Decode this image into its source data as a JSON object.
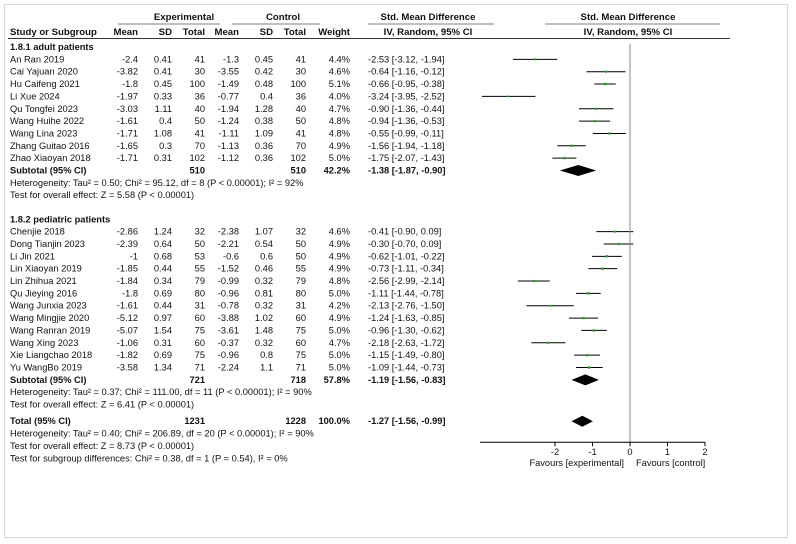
{
  "chart_data": {
    "type": "forest",
    "headers": {
      "group_experimental": "Experimental",
      "group_control": "Control",
      "group_smd_left": "Std. Mean Difference",
      "group_smd_right": "Std. Mean Difference",
      "study": "Study or Subgroup",
      "mean_e": "Mean",
      "sd_e": "SD",
      "total_e": "Total",
      "mean_c": "Mean",
      "sd_c": "SD",
      "total_c": "Total",
      "weight": "Weight",
      "smd_left": "IV, Random, 95% CI",
      "smd_right": "IV, Random, 95% CI"
    },
    "subgroups": [
      {
        "title": "1.8.1 adult patients",
        "studies": [
          {
            "name": "An Ran 2019",
            "mean_e": "-2.4",
            "sd_e": "0.41",
            "n_e": "41",
            "mean_c": "-1.3",
            "sd_c": "0.45",
            "n_c": "41",
            "weight": "4.4%",
            "ci_text": "-2.53 [-3.12, -1.94]",
            "est": -2.53,
            "lo": -3.12,
            "hi": -1.94
          },
          {
            "name": "Cai Yajuan 2020",
            "mean_e": "-3.82",
            "sd_e": "0.41",
            "n_e": "30",
            "mean_c": "-3.55",
            "sd_c": "0.42",
            "n_c": "30",
            "weight": "4.6%",
            "ci_text": "-0.64 [-1.16, -0.12]",
            "est": -0.64,
            "lo": -1.16,
            "hi": -0.12
          },
          {
            "name": "Hu Caifeng 2021",
            "mean_e": "-1.8",
            "sd_e": "0.45",
            "n_e": "100",
            "mean_c": "-1.49",
            "sd_c": "0.48",
            "n_c": "100",
            "weight": "5.1%",
            "ci_text": "-0.66 [-0.95, -0.38]",
            "est": -0.66,
            "lo": -0.95,
            "hi": -0.38
          },
          {
            "name": "Li Xue 2024",
            "mean_e": "-1.97",
            "sd_e": "0.33",
            "n_e": "36",
            "mean_c": "-0.77",
            "sd_c": "0.4",
            "n_c": "36",
            "weight": "4.0%",
            "ci_text": "-3.24 [-3.95, -2.52]",
            "est": -3.24,
            "lo": -3.95,
            "hi": -2.52
          },
          {
            "name": "Qu Tongfei 2023",
            "mean_e": "-3.03",
            "sd_e": "1.11",
            "n_e": "40",
            "mean_c": "-1.94",
            "sd_c": "1.28",
            "n_c": "40",
            "weight": "4.7%",
            "ci_text": "-0.90 [-1.36, -0.44]",
            "est": -0.9,
            "lo": -1.36,
            "hi": -0.44
          },
          {
            "name": "Wang Huihe 2022",
            "mean_e": "-1.61",
            "sd_e": "0.4",
            "n_e": "50",
            "mean_c": "-1.24",
            "sd_c": "0.38",
            "n_c": "50",
            "weight": "4.8%",
            "ci_text": "-0.94 [-1.36, -0.53]",
            "est": -0.94,
            "lo": -1.36,
            "hi": -0.53
          },
          {
            "name": "Wang Lina 2023",
            "mean_e": "-1.71",
            "sd_e": "1.08",
            "n_e": "41",
            "mean_c": "-1.11",
            "sd_c": "1.09",
            "n_c": "41",
            "weight": "4.8%",
            "ci_text": "-0.55 [-0.99, -0.11]",
            "est": -0.55,
            "lo": -0.99,
            "hi": -0.11
          },
          {
            "name": "Zhang Guitao 2016",
            "mean_e": "-1.65",
            "sd_e": "0.3",
            "n_e": "70",
            "mean_c": "-1.13",
            "sd_c": "0.36",
            "n_c": "70",
            "weight": "4.9%",
            "ci_text": "-1.56 [-1.94, -1.18]",
            "est": -1.56,
            "lo": -1.94,
            "hi": -1.18
          },
          {
            "name": "Zhao Xiaoyan 2018",
            "mean_e": "-1.71",
            "sd_e": "0.31",
            "n_e": "102",
            "mean_c": "-1.12",
            "sd_c": "0.36",
            "n_c": "102",
            "weight": "5.0%",
            "ci_text": "-1.75 [-2.07, -1.43]",
            "est": -1.75,
            "lo": -2.07,
            "hi": -1.43
          }
        ],
        "subtotal": {
          "label": "Subtotal (95% CI)",
          "n_e": "510",
          "n_c": "510",
          "weight": "42.2%",
          "ci_text": "-1.38 [-1.87, -0.90]",
          "est": -1.38,
          "lo": -1.87,
          "hi": -0.9
        },
        "heterogeneity": "Heterogeneity: Tau² = 0.50; Chi² = 95.12, df = 8 (P < 0.00001); I² = 92%",
        "overall_effect": "Test for overall effect: Z = 5.58 (P < 0.00001)"
      },
      {
        "title": "1.8.2 pediatric patients",
        "studies": [
          {
            "name": "Chenjie 2018",
            "mean_e": "-2.86",
            "sd_e": "1.24",
            "n_e": "32",
            "mean_c": "-2.38",
            "sd_c": "1.07",
            "n_c": "32",
            "weight": "4.6%",
            "ci_text": "-0.41 [-0.90, 0.09]",
            "est": -0.41,
            "lo": -0.9,
            "hi": 0.09
          },
          {
            "name": "Dong Tianjin 2023",
            "mean_e": "-2.39",
            "sd_e": "0.64",
            "n_e": "50",
            "mean_c": "-2.21",
            "sd_c": "0.54",
            "n_c": "50",
            "weight": "4.9%",
            "ci_text": "-0.30 [-0.70, 0.09]",
            "est": -0.3,
            "lo": -0.7,
            "hi": 0.09
          },
          {
            "name": "Li Jin 2021",
            "mean_e": "-1",
            "sd_e": "0.68",
            "n_e": "53",
            "mean_c": "-0.6",
            "sd_c": "0.6",
            "n_c": "50",
            "weight": "4.9%",
            "ci_text": "-0.62 [-1.01, -0.22]",
            "est": -0.62,
            "lo": -1.01,
            "hi": -0.22
          },
          {
            "name": "Lin Xiaoyan 2019",
            "mean_e": "-1.85",
            "sd_e": "0.44",
            "n_e": "55",
            "mean_c": "-1.52",
            "sd_c": "0.46",
            "n_c": "55",
            "weight": "4.9%",
            "ci_text": "-0.73 [-1.11, -0.34]",
            "est": -0.73,
            "lo": -1.11,
            "hi": -0.34
          },
          {
            "name": "Lin Zhihua 2021",
            "mean_e": "-1.84",
            "sd_e": "0.34",
            "n_e": "79",
            "mean_c": "-0.99",
            "sd_c": "0.32",
            "n_c": "79",
            "weight": "4.8%",
            "ci_text": "-2.56 [-2.99, -2.14]",
            "est": -2.56,
            "lo": -2.99,
            "hi": -2.14
          },
          {
            "name": "Qu Jieying 2016",
            "mean_e": "-1.8",
            "sd_e": "0.69",
            "n_e": "80",
            "mean_c": "-0.96",
            "sd_c": "0.81",
            "n_c": "80",
            "weight": "5.0%",
            "ci_text": "-1.11 [-1.44, -0.78]",
            "est": -1.11,
            "lo": -1.44,
            "hi": -0.78
          },
          {
            "name": "Wang Junxia 2023",
            "mean_e": "-1.61",
            "sd_e": "0.44",
            "n_e": "31",
            "mean_c": "-0.78",
            "sd_c": "0.32",
            "n_c": "31",
            "weight": "4.2%",
            "ci_text": "-2.13 [-2.76, -1.50]",
            "est": -2.13,
            "lo": -2.76,
            "hi": -1.5
          },
          {
            "name": "Wang Mingjie 2020",
            "mean_e": "-5.12",
            "sd_e": "0.97",
            "n_e": "60",
            "mean_c": "-3.88",
            "sd_c": "1.02",
            "n_c": "60",
            "weight": "4.9%",
            "ci_text": "-1.24 [-1.63, -0.85]",
            "est": -1.24,
            "lo": -1.63,
            "hi": -0.85
          },
          {
            "name": "Wang Ranran 2019",
            "mean_e": "-5.07",
            "sd_e": "1.54",
            "n_e": "75",
            "mean_c": "-3.61",
            "sd_c": "1.48",
            "n_c": "75",
            "weight": "5.0%",
            "ci_text": "-0.96 [-1.30, -0.62]",
            "est": -0.96,
            "lo": -1.3,
            "hi": -0.62
          },
          {
            "name": "Wang Xing  2023",
            "mean_e": "-1.06",
            "sd_e": "0.31",
            "n_e": "60",
            "mean_c": "-0.37",
            "sd_c": "0.32",
            "n_c": "60",
            "weight": "4.7%",
            "ci_text": "-2.18 [-2.63, -1.72]",
            "est": -2.18,
            "lo": -2.63,
            "hi": -1.72
          },
          {
            "name": "Xie Liangchao 2018",
            "mean_e": "-1.82",
            "sd_e": "0.69",
            "n_e": "75",
            "mean_c": "-0.96",
            "sd_c": "0.8",
            "n_c": "75",
            "weight": "5.0%",
            "ci_text": "-1.15 [-1.49, -0.80]",
            "est": -1.15,
            "lo": -1.49,
            "hi": -0.8
          },
          {
            "name": "Yu WangBo 2019",
            "mean_e": "-3.58",
            "sd_e": "1.34",
            "n_e": "71",
            "mean_c": "-2.24",
            "sd_c": "1.1",
            "n_c": "71",
            "weight": "5.0%",
            "ci_text": "-1.09 [-1.44, -0.73]",
            "est": -1.09,
            "lo": -1.44,
            "hi": -0.73
          }
        ],
        "subtotal": {
          "label": "Subtotal (95% CI)",
          "n_e": "721",
          "n_c": "718",
          "weight": "57.8%",
          "ci_text": "-1.19 [-1.56, -0.83]",
          "est": -1.19,
          "lo": -1.56,
          "hi": -0.83
        },
        "heterogeneity": "Heterogeneity: Tau² = 0.37; Chi² = 111.00, df = 11 (P < 0.00001); I² = 90%",
        "overall_effect": "Test for overall effect: Z = 6.41 (P < 0.00001)"
      }
    ],
    "total": {
      "label": "Total (95% CI)",
      "n_e": "1231",
      "n_c": "1228",
      "weight": "100.0%",
      "ci_text": "-1.27 [-1.56, -0.99]",
      "est": -1.27,
      "lo": -1.56,
      "hi": -0.99
    },
    "total_heterogeneity": "Heterogeneity: Tau² = 0.40; Chi² = 206.89, df = 20 (P < 0.00001); I² = 90%",
    "total_overall_effect": "Test for overall effect: Z = 8.73 (P < 0.00001)",
    "subgroup_differences": "Test for subgroup differences: Chi² = 0.38, df = 1 (P = 0.54), I² = 0%",
    "xlim": [
      -4,
      2
    ],
    "xticks": [
      -2,
      -1,
      0,
      1,
      2
    ],
    "xtick_labels": [
      "-2",
      "-1",
      "0",
      "1",
      "2"
    ],
    "favours_left": "Favours [experimental]",
    "favours_right": "Favours [control]",
    "colors": {
      "point": "#22aa22",
      "line": "#000000",
      "diamond": "#000000",
      "rule": "#888888"
    }
  }
}
